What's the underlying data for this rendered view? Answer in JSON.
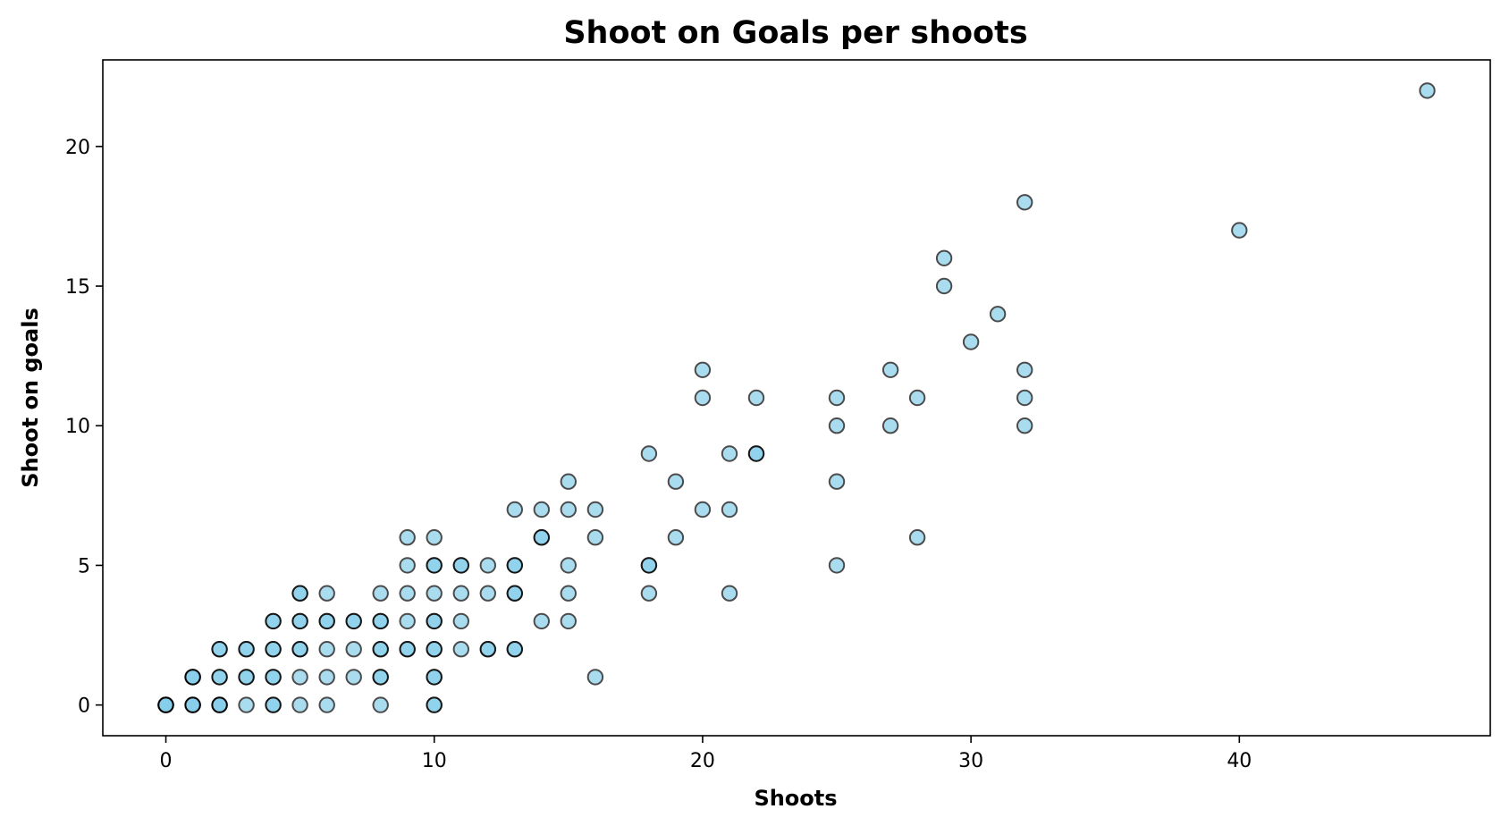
{
  "chart_data": {
    "type": "scatter",
    "title": "Shoot on Goals per shoots",
    "xlabel": "Shoots",
    "ylabel": "Shoot on goals",
    "xlim": [
      -2.35,
      49.35
    ],
    "ylim": [
      -1.1,
      23.1
    ],
    "xticks": [
      0,
      10,
      20,
      30,
      40
    ],
    "yticks": [
      0,
      5,
      10,
      15,
      20
    ],
    "grid": false,
    "marker_fill": "#87CEEB",
    "marker_edge": "#000000",
    "marker_alpha": 0.7,
    "points": [
      [
        0,
        0
      ],
      [
        0,
        0
      ],
      [
        0,
        0
      ],
      [
        0,
        0
      ],
      [
        1,
        0
      ],
      [
        1,
        0
      ],
      [
        1,
        0
      ],
      [
        1,
        1
      ],
      [
        1,
        1
      ],
      [
        1,
        1
      ],
      [
        2,
        0
      ],
      [
        2,
        0
      ],
      [
        2,
        0
      ],
      [
        2,
        1
      ],
      [
        2,
        1
      ],
      [
        2,
        2
      ],
      [
        2,
        2
      ],
      [
        3,
        0
      ],
      [
        3,
        1
      ],
      [
        3,
        1
      ],
      [
        3,
        2
      ],
      [
        3,
        2
      ],
      [
        4,
        0
      ],
      [
        4,
        0
      ],
      [
        4,
        1
      ],
      [
        4,
        1
      ],
      [
        4,
        2
      ],
      [
        4,
        2
      ],
      [
        4,
        3
      ],
      [
        4,
        3
      ],
      [
        5,
        0
      ],
      [
        5,
        1
      ],
      [
        5,
        2
      ],
      [
        5,
        2
      ],
      [
        5,
        3
      ],
      [
        5,
        3
      ],
      [
        5,
        4
      ],
      [
        5,
        4
      ],
      [
        6,
        0
      ],
      [
        6,
        1
      ],
      [
        6,
        2
      ],
      [
        6,
        3
      ],
      [
        6,
        3
      ],
      [
        6,
        4
      ],
      [
        7,
        1
      ],
      [
        7,
        2
      ],
      [
        7,
        3
      ],
      [
        7,
        3
      ],
      [
        8,
        0
      ],
      [
        8,
        1
      ],
      [
        8,
        1
      ],
      [
        8,
        2
      ],
      [
        8,
        2
      ],
      [
        8,
        3
      ],
      [
        8,
        3
      ],
      [
        8,
        4
      ],
      [
        9,
        2
      ],
      [
        9,
        2
      ],
      [
        9,
        3
      ],
      [
        9,
        4
      ],
      [
        9,
        5
      ],
      [
        9,
        6
      ],
      [
        10,
        0
      ],
      [
        10,
        0
      ],
      [
        10,
        1
      ],
      [
        10,
        1
      ],
      [
        10,
        2
      ],
      [
        10,
        2
      ],
      [
        10,
        3
      ],
      [
        10,
        3
      ],
      [
        10,
        4
      ],
      [
        10,
        5
      ],
      [
        10,
        5
      ],
      [
        10,
        6
      ],
      [
        11,
        2
      ],
      [
        11,
        3
      ],
      [
        11,
        4
      ],
      [
        11,
        5
      ],
      [
        11,
        5
      ],
      [
        12,
        2
      ],
      [
        12,
        2
      ],
      [
        12,
        4
      ],
      [
        12,
        5
      ],
      [
        13,
        2
      ],
      [
        13,
        2
      ],
      [
        13,
        4
      ],
      [
        13,
        4
      ],
      [
        13,
        5
      ],
      [
        13,
        5
      ],
      [
        13,
        7
      ],
      [
        14,
        3
      ],
      [
        14,
        6
      ],
      [
        14,
        6
      ],
      [
        14,
        7
      ],
      [
        15,
        3
      ],
      [
        15,
        4
      ],
      [
        15,
        5
      ],
      [
        15,
        7
      ],
      [
        15,
        8
      ],
      [
        16,
        1
      ],
      [
        16,
        6
      ],
      [
        16,
        7
      ],
      [
        18,
        4
      ],
      [
        18,
        5
      ],
      [
        18,
        5
      ],
      [
        18,
        9
      ],
      [
        19,
        6
      ],
      [
        19,
        8
      ],
      [
        20,
        7
      ],
      [
        20,
        11
      ],
      [
        20,
        12
      ],
      [
        21,
        4
      ],
      [
        21,
        7
      ],
      [
        21,
        9
      ],
      [
        22,
        9
      ],
      [
        22,
        9
      ],
      [
        22,
        11
      ],
      [
        25,
        5
      ],
      [
        25,
        8
      ],
      [
        25,
        10
      ],
      [
        25,
        11
      ],
      [
        27,
        10
      ],
      [
        27,
        12
      ],
      [
        28,
        6
      ],
      [
        28,
        11
      ],
      [
        29,
        15
      ],
      [
        29,
        16
      ],
      [
        30,
        13
      ],
      [
        31,
        14
      ],
      [
        32,
        10
      ],
      [
        32,
        11
      ],
      [
        32,
        12
      ],
      [
        32,
        18
      ],
      [
        40,
        17
      ],
      [
        47,
        22
      ]
    ]
  }
}
